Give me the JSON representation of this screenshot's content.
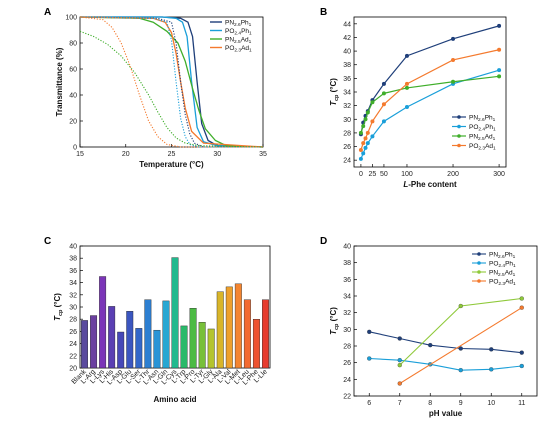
{
  "chart_data": [
    {
      "panel": "A",
      "type": "line",
      "xlabel": "Temperature (°C)",
      "ylabel": "Transmittance (%)",
      "xlim": [
        15,
        35
      ],
      "ylim": [
        0,
        100
      ],
      "xticks": [
        15,
        20,
        25,
        30,
        35
      ],
      "yticks": [
        0,
        20,
        40,
        60,
        80,
        100
      ],
      "legend_position": "top-right",
      "series": [
        {
          "name": "PN",
          "sub1": "2.6",
          "name2": "Ph",
          "sub2": "1",
          "color": "#1f3f7a",
          "style": "solid",
          "x": [
            15,
            24,
            26,
            26.8,
            27.3,
            27.8,
            28.3,
            29,
            30,
            35
          ],
          "y": [
            100,
            100,
            99,
            96,
            85,
            50,
            18,
            5,
            1,
            0
          ]
        },
        {
          "name": "PO",
          "sub1": "2.4",
          "name2": "Ph",
          "sub2": "1",
          "color": "#1a9fd9",
          "style": "solid",
          "x": [
            15,
            24,
            25.5,
            26.2,
            26.7,
            27.2,
            27.8,
            28.5,
            30,
            35
          ],
          "y": [
            100,
            100,
            99,
            96,
            85,
            50,
            15,
            4,
            1,
            0
          ]
        },
        {
          "name": "PN",
          "sub1": "2.5",
          "name2": "Ad",
          "sub2": "1",
          "color": "#3fae2a",
          "style": "solid",
          "x": [
            15,
            21.5,
            23,
            24.5,
            25.7,
            26.5,
            27.3,
            28,
            28.7,
            29.8,
            31,
            35
          ],
          "y": [
            100,
            99,
            96,
            89,
            80,
            66,
            45,
            28,
            14,
            5,
            1,
            0
          ]
        },
        {
          "name": "PO",
          "sub1": "2.3",
          "name2": "Ad",
          "sub2": "1",
          "color": "#f47a2e",
          "style": "solid",
          "x": [
            15,
            23,
            24.3,
            25,
            25.5,
            26,
            26.5,
            27.2,
            28.5,
            35
          ],
          "y": [
            100,
            99,
            96,
            88,
            72,
            50,
            30,
            12,
            3,
            0
          ]
        },
        {
          "name": "",
          "color": "#1f3f7a",
          "style": "dotted",
          "x": [
            15,
            23.5,
            25,
            25.5,
            26,
            26.5,
            27,
            27.5,
            28.5,
            35
          ],
          "y": [
            100,
            99,
            96,
            80,
            50,
            25,
            10,
            3,
            0,
            0
          ]
        },
        {
          "name": "",
          "color": "#1a9fd9",
          "style": "dotted",
          "x": [
            15,
            23,
            24.5,
            25,
            25.5,
            26,
            26.5,
            27,
            28,
            35
          ],
          "y": [
            100,
            99,
            96,
            82,
            50,
            22,
            8,
            2,
            0,
            0
          ]
        },
        {
          "name": "",
          "color": "#3fae2a",
          "style": "dotted",
          "x": [
            15,
            16.5,
            18,
            19.5,
            21,
            22.5,
            23.5,
            24.5,
            25.5,
            26.5,
            28,
            35
          ],
          "y": [
            89,
            85,
            79,
            70,
            57,
            40,
            27,
            15,
            7,
            3,
            1,
            0
          ]
        },
        {
          "name": "",
          "color": "#f47a2e",
          "style": "dotted",
          "x": [
            15,
            17.5,
            18.5,
            19.5,
            20.5,
            21.5,
            22.5,
            23.5,
            24.5,
            26,
            35
          ],
          "y": [
            100,
            98,
            92,
            80,
            62,
            40,
            20,
            8,
            2,
            0,
            0
          ]
        }
      ]
    },
    {
      "panel": "B",
      "type": "line",
      "xlabel_italic": "L",
      "xlabel": "-Phe content",
      "ylabel": "T",
      "ylabel_sub": "cp",
      "ylabel_unit": "(°C)",
      "xlim": [
        -15,
        315
      ],
      "ylim": [
        23,
        45
      ],
      "xticks": [
        0,
        25,
        50,
        100,
        200,
        300
      ],
      "yticks": [
        24,
        26,
        28,
        30,
        32,
        34,
        36,
        38,
        40,
        42,
        44
      ],
      "legend_position": "bottom-right",
      "x": [
        0,
        5,
        10,
        15,
        25,
        50,
        100,
        200,
        300
      ],
      "series": [
        {
          "name": "PN",
          "sub1": "2.6",
          "name2": "Ph",
          "sub2": "1",
          "color": "#1f3f7a",
          "y": [
            27.8,
            29.5,
            30.5,
            31.2,
            32.8,
            35.2,
            39.3,
            41.8,
            43.7
          ]
        },
        {
          "name": "PO",
          "sub1": "2.4",
          "name2": "Ph",
          "sub2": "1",
          "color": "#1a9fd9",
          "y": [
            24.2,
            25.0,
            25.8,
            26.5,
            27.5,
            29.7,
            31.8,
            35.2,
            37.2
          ]
        },
        {
          "name": "PN",
          "sub1": "2.5",
          "name2": "Ad",
          "sub2": "1",
          "color": "#3fae2a",
          "y": [
            28.0,
            29.0,
            30.0,
            31.0,
            32.5,
            33.8,
            34.6,
            35.5,
            36.3
          ]
        },
        {
          "name": "PO",
          "sub1": "2.3",
          "name2": "Ad",
          "sub2": "1",
          "color": "#f47a2e",
          "y": [
            25.5,
            26.5,
            27.2,
            28.0,
            29.7,
            32.2,
            35.2,
            38.7,
            40.2
          ]
        }
      ]
    },
    {
      "panel": "C",
      "type": "bar",
      "xlabel": "Amino acid",
      "ylabel": "T",
      "ylabel_sub": "cp",
      "ylabel_unit": "(°C)",
      "ylim": [
        20,
        40
      ],
      "yticks": [
        20,
        22,
        24,
        26,
        28,
        30,
        32,
        34,
        36,
        38,
        40
      ],
      "categories": [
        "Blank",
        "L-Arg",
        "L-Lys",
        "L-His",
        "L-Asp",
        "L-Glu",
        "L-Ser",
        "L-Thr",
        "L-Asn",
        "L-Gln",
        "L-Cys",
        "L-Trp",
        "L-Pro",
        "L-Tyr",
        "L-Gly",
        "L-Ala",
        "L-Val",
        "L-Met",
        "L-Leu",
        "L-Phe",
        "L-Lle"
      ],
      "values": [
        27.8,
        28.6,
        35.0,
        30.1,
        25.9,
        29.3,
        26.5,
        31.2,
        26.2,
        31.0,
        38.1,
        26.9,
        29.8,
        27.5,
        26.4,
        32.5,
        33.3,
        33.8,
        31.2,
        28.0,
        31.2
      ],
      "colors": [
        "#5a4a9e",
        "#6b3fa0",
        "#7b35b8",
        "#5a3fb3",
        "#4648b8",
        "#3b56c0",
        "#3367c9",
        "#2d7fd1",
        "#2a94d6",
        "#27a7d2",
        "#21b98e",
        "#2ab96a",
        "#4cbb44",
        "#78c03a",
        "#b4c42f",
        "#d8b52a",
        "#eea02c",
        "#f48530",
        "#f36a30",
        "#ee5230",
        "#e73c2e"
      ]
    },
    {
      "panel": "D",
      "type": "line",
      "xlabel": "pH value",
      "ylabel": "T",
      "ylabel_sub": "cp",
      "ylabel_unit": "(°C)",
      "xlim": [
        5.5,
        11.5
      ],
      "ylim": [
        22,
        40
      ],
      "xticks": [
        6,
        7,
        8,
        9,
        10,
        11
      ],
      "yticks": [
        22,
        24,
        26,
        28,
        30,
        32,
        34,
        36,
        38,
        40
      ],
      "legend_position": "top-right",
      "series": [
        {
          "name": "PN",
          "sub1": "2.6",
          "name2": "Ph",
          "sub2": "1",
          "color": "#1f3f7a",
          "x": [
            6,
            7,
            8,
            9,
            10,
            11
          ],
          "y": [
            29.7,
            28.9,
            28.1,
            27.7,
            27.6,
            27.2
          ]
        },
        {
          "name": "PO",
          "sub1": "2.4",
          "name2": "Ph",
          "sub2": "1",
          "color": "#1a9fd9",
          "x": [
            6,
            7,
            8,
            9,
            10,
            11
          ],
          "y": [
            26.5,
            26.3,
            25.8,
            25.1,
            25.2,
            25.6
          ]
        },
        {
          "name": "PN",
          "sub1": "2.5",
          "name2": "Ad",
          "sub2": "1",
          "color": "#8fc93a",
          "x": [
            7,
            9,
            11
          ],
          "y": [
            25.7,
            32.8,
            33.7
          ]
        },
        {
          "name": "PO",
          "sub1": "2.3",
          "name2": "Ad",
          "sub2": "1",
          "color": "#f47a2e",
          "x": [
            7,
            11
          ],
          "y": [
            23.5,
            32.6
          ]
        }
      ]
    }
  ]
}
